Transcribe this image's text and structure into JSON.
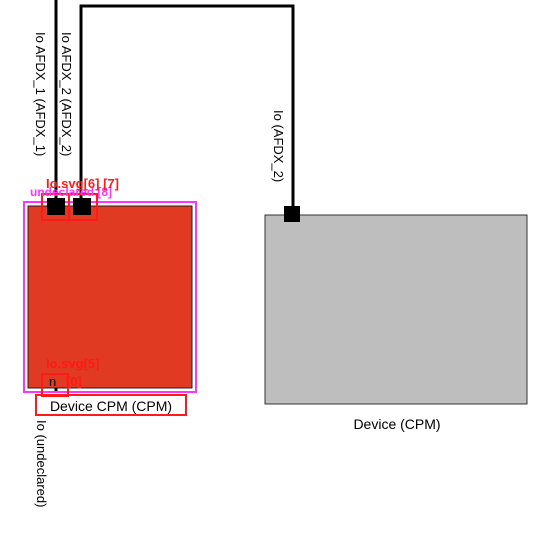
{
  "connections": [
    {
      "label": "Io AFDX_1 (AFDX_1)"
    },
    {
      "label": "Io AFDX_2 (AFDX_2)"
    },
    {
      "label": "Io (AFDX_2)"
    },
    {
      "label": "Io (undeclared)"
    }
  ],
  "devices": {
    "left": {
      "label": "Device CPM (CPM)",
      "fill": "#e03a22"
    },
    "right": {
      "label": "Device (CPM)",
      "fill": "#bebebe"
    }
  },
  "overlay": {
    "top_red": "Io.svg[6] [7]",
    "top_magenta": "undeclared [8]",
    "bottom_red": "Io.svg[5]",
    "port_tag": "[0]",
    "port_text": "n",
    "colors": {
      "red": "#ff1a1a",
      "magenta": "#ff33ff"
    }
  }
}
